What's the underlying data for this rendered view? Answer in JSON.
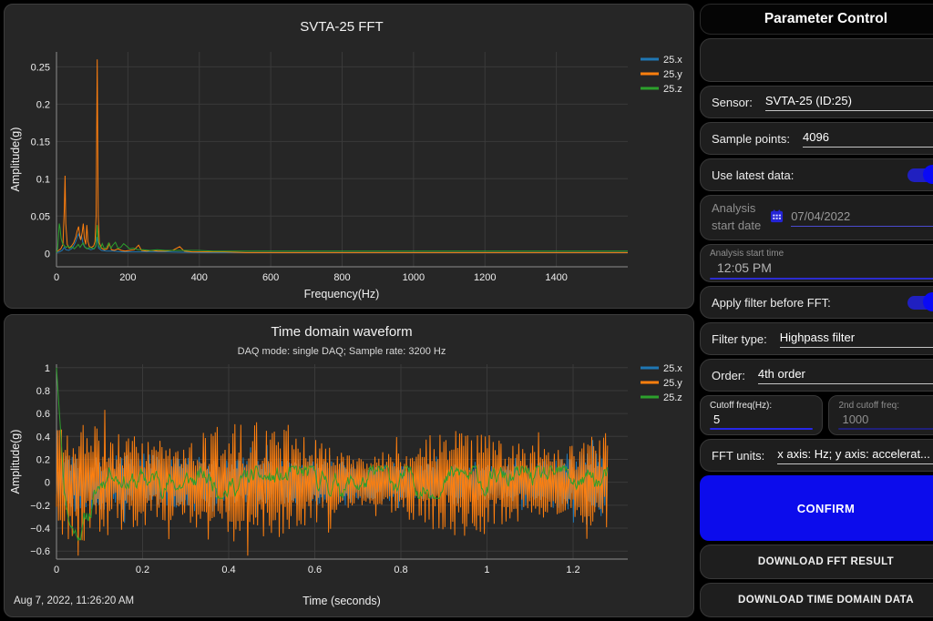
{
  "ui": {
    "timestamp": "Aug 7, 2022, 11:26:20 AM",
    "param_panel": {
      "title": "Parameter Control",
      "sensor_label": "Sensor:",
      "sensor_value": "SVTA-25 (ID:25)",
      "sample_points_label": "Sample points:",
      "sample_points_value": "4096",
      "use_latest_label": "Use latest data:",
      "use_latest_on": true,
      "analysis_date_label_line1": "Analysis",
      "analysis_date_label_line2": "start date",
      "analysis_date_value": "07/04/2022",
      "analysis_time_label": "Analysis start time",
      "analysis_time_value": "12:05 PM",
      "apply_filter_label": "Apply filter before FFT:",
      "apply_filter_on": true,
      "filter_type_label": "Filter type:",
      "filter_type_value": "Highpass filter",
      "order_label": "Order:",
      "order_value": "4th order",
      "cutoff_label": "Cutoff freq(Hz):",
      "cutoff_value": "5",
      "cutoff2_label": "2nd cutoff freq:",
      "cutoff2_value": "1000",
      "fft_units_label": "FFT units:",
      "fft_units_value": "x axis: Hz; y axis: accelerat...",
      "confirm_label": "CONFIRM",
      "download_fft_label": "DOWNLOAD FFT RESULT",
      "download_time_label": "DOWNLOAD TIME DOMAIN DATA"
    },
    "colors": {
      "accent_blue": "#0c0cec",
      "series_x": "#1f77b4",
      "series_y": "#ff7f0e",
      "series_z": "#2ca02c",
      "panel_bg": "#262626",
      "grid": "#3a3a3a"
    }
  },
  "chart_data": [
    {
      "type": "line",
      "title": "SVTA-25 FFT",
      "xlabel": "Frequency(Hz)",
      "ylabel": "Amplitude(g)",
      "xlim": [
        0,
        1600
      ],
      "ylim": [
        -0.018,
        0.27
      ],
      "grid": true,
      "legend_position": "top-right",
      "xticks": [
        0,
        200,
        400,
        600,
        800,
        1000,
        1200,
        1400
      ],
      "xtick_labels": [
        "0",
        "200",
        "400",
        "600",
        "800",
        "1000",
        "1200",
        "1400"
      ],
      "yticks": [
        0,
        0.05,
        0.1,
        0.15,
        0.2,
        0.25
      ],
      "ytick_labels": [
        "0",
        "0.05",
        "0.1",
        "0.15",
        "0.2",
        "0.25"
      ],
      "series": [
        {
          "name": "25.x",
          "color": "#1f77b4",
          "points": [
            [
              0,
              0.001
            ],
            [
              8,
              0.002
            ],
            [
              16,
              0.004
            ],
            [
              22,
              0.008
            ],
            [
              26,
              0.005
            ],
            [
              34,
              0.004
            ],
            [
              42,
              0.006
            ],
            [
              48,
              0.01
            ],
            [
              54,
              0.016
            ],
            [
              58,
              0.022
            ],
            [
              62,
              0.026
            ],
            [
              66,
              0.02
            ],
            [
              70,
              0.024
            ],
            [
              74,
              0.014
            ],
            [
              78,
              0.009
            ],
            [
              84,
              0.007
            ],
            [
              90,
              0.006
            ],
            [
              96,
              0.005
            ],
            [
              104,
              0.006
            ],
            [
              110,
              0.009
            ],
            [
              114,
              0.022
            ],
            [
              118,
              0.007
            ],
            [
              126,
              0.004
            ],
            [
              140,
              0.003
            ],
            [
              160,
              0.003
            ],
            [
              185,
              0.002
            ],
            [
              220,
              0.002
            ],
            [
              260,
              0.002
            ],
            [
              310,
              0.002
            ],
            [
              400,
              0.001
            ],
            [
              550,
              0.001
            ],
            [
              800,
              0.001
            ],
            [
              1100,
              0.001
            ],
            [
              1400,
              0.001
            ],
            [
              1600,
              0.001
            ]
          ]
        },
        {
          "name": "25.y",
          "color": "#ff7f0e",
          "points": [
            [
              0,
              0.002
            ],
            [
              6,
              0.004
            ],
            [
              12,
              0.006
            ],
            [
              18,
              0.012
            ],
            [
              22,
              0.06
            ],
            [
              24,
              0.104
            ],
            [
              26,
              0.04
            ],
            [
              30,
              0.012
            ],
            [
              36,
              0.007
            ],
            [
              42,
              0.01
            ],
            [
              48,
              0.014
            ],
            [
              54,
              0.022
            ],
            [
              58,
              0.03
            ],
            [
              62,
              0.036
            ],
            [
              65,
              0.024
            ],
            [
              68,
              0.018
            ],
            [
              72,
              0.028
            ],
            [
              75,
              0.04
            ],
            [
              78,
              0.02
            ],
            [
              82,
              0.012
            ],
            [
              85,
              0.038
            ],
            [
              88,
              0.016
            ],
            [
              92,
              0.009
            ],
            [
              98,
              0.008
            ],
            [
              104,
              0.01
            ],
            [
              108,
              0.016
            ],
            [
              111,
              0.05
            ],
            [
              114,
              0.26
            ],
            [
              117,
              0.05
            ],
            [
              120,
              0.014
            ],
            [
              126,
              0.007
            ],
            [
              134,
              0.005
            ],
            [
              142,
              0.006
            ],
            [
              148,
              0.013
            ],
            [
              154,
              0.005
            ],
            [
              162,
              0.004
            ],
            [
              172,
              0.006
            ],
            [
              182,
              0.004
            ],
            [
              192,
              0.003
            ],
            [
              205,
              0.004
            ],
            [
              218,
              0.005
            ],
            [
              230,
              0.011
            ],
            [
              238,
              0.004
            ],
            [
              252,
              0.003
            ],
            [
              268,
              0.004
            ],
            [
              285,
              0.003
            ],
            [
              305,
              0.003
            ],
            [
              325,
              0.004
            ],
            [
              345,
              0.009
            ],
            [
              358,
              0.003
            ],
            [
              380,
              0.002
            ],
            [
              420,
              0.002
            ],
            [
              470,
              0.002
            ],
            [
              530,
              0.001
            ],
            [
              640,
              0.001
            ],
            [
              800,
              0.001
            ],
            [
              1000,
              0.001
            ],
            [
              1200,
              0.001
            ],
            [
              1400,
              0.001
            ],
            [
              1600,
              0.001
            ]
          ]
        },
        {
          "name": "25.z",
          "color": "#2ca02c",
          "points": [
            [
              0,
              0.001
            ],
            [
              3,
              0.006
            ],
            [
              6,
              0.028
            ],
            [
              8,
              0.04
            ],
            [
              10,
              0.034
            ],
            [
              13,
              0.02
            ],
            [
              17,
              0.013
            ],
            [
              22,
              0.01
            ],
            [
              27,
              0.008
            ],
            [
              33,
              0.01
            ],
            [
              38,
              0.007
            ],
            [
              44,
              0.009
            ],
            [
              50,
              0.006
            ],
            [
              56,
              0.009
            ],
            [
              61,
              0.012
            ],
            [
              66,
              0.008
            ],
            [
              70,
              0.011
            ],
            [
              75,
              0.014
            ],
            [
              80,
              0.008
            ],
            [
              86,
              0.006
            ],
            [
              93,
              0.008
            ],
            [
              100,
              0.007
            ],
            [
              106,
              0.006
            ],
            [
              110,
              0.01
            ],
            [
              114,
              0.038
            ],
            [
              118,
              0.01
            ],
            [
              124,
              0.007
            ],
            [
              128,
              0.013
            ],
            [
              134,
              0.006
            ],
            [
              140,
              0.008
            ],
            [
              146,
              0.014
            ],
            [
              152,
              0.007
            ],
            [
              158,
              0.011
            ],
            [
              165,
              0.015
            ],
            [
              172,
              0.007
            ],
            [
              180,
              0.008
            ],
            [
              188,
              0.013
            ],
            [
              196,
              0.01
            ],
            [
              205,
              0.006
            ],
            [
              215,
              0.007
            ],
            [
              228,
              0.005
            ],
            [
              244,
              0.005
            ],
            [
              262,
              0.004
            ],
            [
              282,
              0.005
            ],
            [
              305,
              0.004
            ],
            [
              330,
              0.004
            ],
            [
              360,
              0.004
            ],
            [
              395,
              0.004
            ],
            [
              440,
              0.003
            ],
            [
              500,
              0.003
            ],
            [
              580,
              0.003
            ],
            [
              700,
              0.003
            ],
            [
              850,
              0.003
            ],
            [
              1000,
              0.003
            ],
            [
              1200,
              0.003
            ],
            [
              1400,
              0.003
            ],
            [
              1600,
              0.003
            ]
          ]
        }
      ]
    },
    {
      "type": "line",
      "title": "Time domain waveform",
      "subtitle": "DAQ mode: single DAQ; Sample rate: 3200 Hz",
      "xlabel": "Time (seconds)",
      "ylabel": "Amplitude(g)",
      "xlim": [
        0,
        1.327
      ],
      "ylim": [
        -0.67,
        1.03
      ],
      "grid": true,
      "legend_position": "top-right",
      "sample_rate_hz": 3200,
      "duration_s": 1.28,
      "xticks": [
        0,
        0.2,
        0.4,
        0.6,
        0.8,
        1,
        1.2
      ],
      "xtick_labels": [
        "0",
        "0.2",
        "0.4",
        "0.6",
        "0.8",
        "1",
        "1.2"
      ],
      "yticks": [
        -0.6,
        -0.4,
        -0.2,
        0,
        0.2,
        0.4,
        0.6,
        0.8,
        1
      ],
      "ytick_labels": [
        "−0.6",
        "−0.4",
        "−0.2",
        "0",
        "0.2",
        "0.4",
        "0.6",
        "0.8",
        "1"
      ],
      "series": [
        {
          "name": "25.x",
          "color": "#1f77b4",
          "gen": {
            "kind": "spiky",
            "seed": 9,
            "n": 600,
            "t1": 1.28,
            "base": 0.08,
            "mod": 0.04,
            "mod_freq": 1.7
          }
        },
        {
          "name": "25.y",
          "color": "#ff7f0e",
          "gen": {
            "kind": "spiky",
            "seed": 5,
            "n": 560,
            "t1": 1.28,
            "base": 0.3,
            "mod": 0.13,
            "mod_freq": 2.2
          }
        },
        {
          "name": "25.z",
          "color": "#2ca02c",
          "gen": {
            "kind": "walk",
            "seed": 11,
            "n": 640,
            "t1": 1.28,
            "step": 0.13,
            "amp": 0.14,
            "fade": 0.06,
            "baseline": [
              [
                0,
                1
              ],
              [
                0.008,
                0.55
              ],
              [
                0.018,
                -0.05
              ],
              [
                0.03,
                -0.32
              ],
              [
                0.045,
                -0.4
              ],
              [
                0.06,
                -0.36
              ],
              [
                0.08,
                -0.22
              ],
              [
                0.1,
                -0.05
              ],
              [
                0.125,
                0.18
              ],
              [
                0.15,
                0.1
              ],
              [
                0.18,
                0.02
              ],
              [
                0.22,
                0
              ],
              [
                1.28,
                0
              ]
            ]
          }
        }
      ]
    }
  ]
}
